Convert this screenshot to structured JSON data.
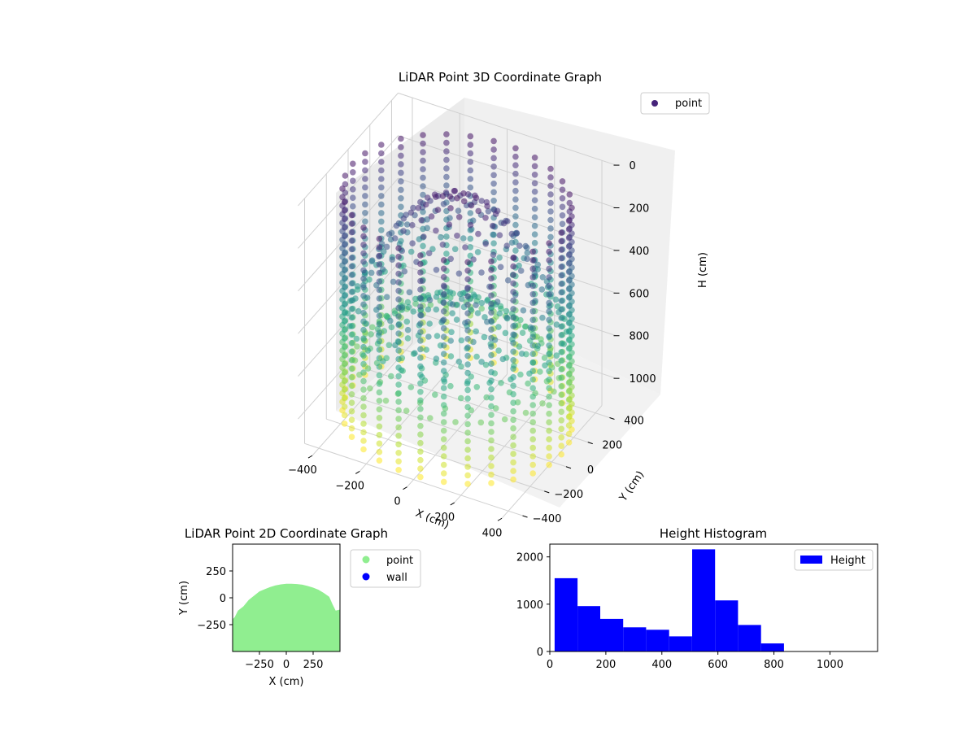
{
  "chart_data": [
    {
      "type": "scatter",
      "title": "LiDAR Point 3D Coordinate Graph",
      "xlabel": "X (cm)",
      "ylabel": "Y (cm)",
      "zlabel": "H (cm)",
      "xticks": [
        "−400",
        "−200",
        "0",
        "200",
        "400"
      ],
      "yticks": [
        "−400",
        "−200",
        "0",
        "200",
        "400"
      ],
      "zticks": [
        "0",
        "200",
        "400",
        "600",
        "800",
        "1000"
      ],
      "xlim": [
        -460,
        460
      ],
      "ylim": [
        -460,
        460
      ],
      "zlim": [
        0,
        1150
      ],
      "z_inverted": true,
      "legend": [
        {
          "label": "point",
          "color": "#46237a"
        }
      ],
      "legend_position": "top-right",
      "colormap": "viridis",
      "grid": true,
      "series": [
        {
          "name": "point",
          "description_shape": "cylinder wall plus dome of points",
          "wall_radius": 440,
          "wall_angles_deg": [
            0,
            12,
            24,
            36,
            48,
            60,
            72,
            84,
            96,
            108,
            120,
            132,
            144,
            156,
            168,
            180,
            192,
            204,
            216,
            228,
            240,
            252,
            264,
            276,
            288,
            300,
            312,
            324,
            336,
            348
          ],
          "wall_heights": [
            60,
            100,
            140,
            180,
            220,
            260,
            300,
            340,
            380,
            420,
            460,
            500,
            540,
            580,
            620,
            660,
            700,
            740,
            780,
            820,
            860,
            900,
            940,
            980,
            1020,
            1060,
            1100
          ],
          "dome_top_height": 60,
          "dome_base_height": 700,
          "inner_dome_top_height": 560,
          "inner_dome_base_height": 920
        }
      ]
    },
    {
      "type": "scatter",
      "title": "LiDAR Point 2D Coordinate Graph",
      "xlabel": "X (cm)",
      "ylabel": "Y (cm)",
      "xticks": [
        "−250",
        "0",
        "250"
      ],
      "yticks": [
        "250",
        "0",
        "−250"
      ],
      "xlim": [
        -500,
        500
      ],
      "ylim": [
        -500,
        500
      ],
      "legend": [
        {
          "label": "point",
          "color": "#90ee90"
        },
        {
          "label": "wall",
          "color": "#0000ff"
        }
      ],
      "legend_position": "outside-right",
      "region": {
        "color": "#90ee90",
        "outline": [
          [
            -500,
            -500
          ],
          [
            -500,
            -200
          ],
          [
            -480,
            -180
          ],
          [
            -450,
            -120
          ],
          [
            -400,
            -80
          ],
          [
            -350,
            -20
          ],
          [
            -300,
            20
          ],
          [
            -250,
            60
          ],
          [
            -200,
            80
          ],
          [
            -150,
            100
          ],
          [
            -100,
            115
          ],
          [
            -50,
            125
          ],
          [
            0,
            130
          ],
          [
            50,
            130
          ],
          [
            100,
            128
          ],
          [
            150,
            122
          ],
          [
            200,
            110
          ],
          [
            250,
            95
          ],
          [
            300,
            75
          ],
          [
            350,
            45
          ],
          [
            400,
            10
          ],
          [
            430,
            -60
          ],
          [
            460,
            -120
          ],
          [
            500,
            -110
          ],
          [
            500,
            -500
          ]
        ]
      }
    },
    {
      "type": "bar",
      "title": "Height Histogram",
      "xlabel": "",
      "ylabel": "",
      "xticks": [
        "0",
        "200",
        "400",
        "600",
        "800",
        "1000"
      ],
      "yticks": [
        "0",
        "1000",
        "2000"
      ],
      "xlim": [
        0,
        1170
      ],
      "ylim": [
        0,
        2270
      ],
      "legend": [
        {
          "label": "Height",
          "color": "#0000ff"
        }
      ],
      "legend_position": "top-right",
      "bin_edges": [
        17,
        99,
        180,
        262,
        344,
        426,
        508,
        590,
        672,
        754,
        836,
        918,
        1000,
        1082,
        1163
      ],
      "counts": [
        1550,
        960,
        690,
        510,
        460,
        320,
        2160,
        1080,
        560,
        170,
        0,
        0,
        0,
        0
      ],
      "color": "#0000ff"
    }
  ]
}
